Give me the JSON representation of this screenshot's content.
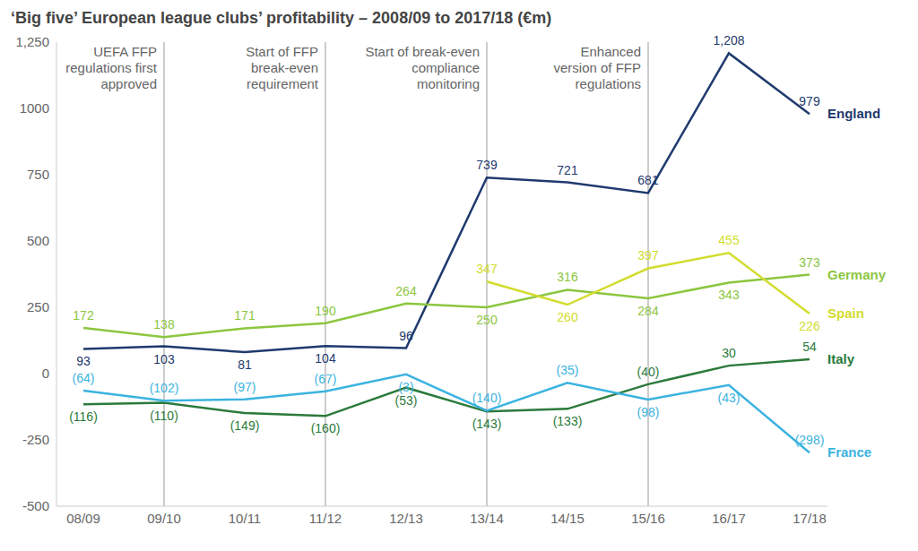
{
  "chart_data": {
    "type": "line",
    "title": "‘Big five’ European league clubs’ profitability – 2008/09 to 2017/18 (€m)",
    "categories": [
      "08/09",
      "09/10",
      "10/11",
      "11/12",
      "12/13",
      "13/14",
      "14/15",
      "15/16",
      "16/17",
      "17/18"
    ],
    "series": [
      {
        "name": "England",
        "color": "#1f3a6e",
        "values": [
          93,
          103,
          81,
          104,
          96,
          739,
          721,
          681,
          1208,
          979
        ],
        "value_labels": [
          "93",
          "103",
          "81",
          "104",
          "96",
          "739",
          "721",
          "681",
          "1,208",
          "979"
        ]
      },
      {
        "name": "Germany",
        "color": "#8cc63f",
        "values": [
          172,
          138,
          171,
          190,
          264,
          250,
          316,
          284,
          343,
          373
        ],
        "value_labels": [
          "172",
          "138",
          "171",
          "190",
          "264",
          "250",
          "316",
          "284",
          "343",
          "373"
        ]
      },
      {
        "name": "Spain",
        "color": "#d2dc2e",
        "values": [
          null,
          null,
          null,
          null,
          null,
          347,
          260,
          397,
          455,
          226
        ],
        "value_labels": [
          null,
          null,
          null,
          null,
          null,
          "347",
          "260",
          "397",
          "455",
          "226"
        ]
      },
      {
        "name": "Italy",
        "color": "#2b7a3b",
        "values": [
          -116,
          -110,
          -149,
          -160,
          -53,
          -143,
          -133,
          -40,
          30,
          54
        ],
        "value_labels": [
          "(116)",
          "(110)",
          "(149)",
          "(160)",
          "(53)",
          "(143)",
          "(133)",
          "(40)",
          "30",
          "54"
        ]
      },
      {
        "name": "France",
        "color": "#3bb3e0",
        "values": [
          -64,
          -102,
          -97,
          -67,
          -3,
          -140,
          -35,
          -98,
          -43,
          -298
        ],
        "value_labels": [
          "(64)",
          "(102)",
          "(97)",
          "(67)",
          "(3)",
          "(140)",
          "(35)",
          "(98)",
          "(43)",
          "(298)"
        ]
      }
    ],
    "ylim": [
      -500,
      1250
    ],
    "yticks": [
      -500,
      -250,
      0,
      250,
      500,
      750,
      1000,
      {
        "value": 1250,
        "label": "1,250"
      }
    ],
    "grid": false,
    "data_labels": true,
    "annotations": [
      {
        "x": "09/10",
        "text": [
          "UEFA FFP",
          "regulations first",
          "approved"
        ]
      },
      {
        "x": "11/12",
        "text": [
          "Start of FFP",
          "break-even",
          "requirement"
        ]
      },
      {
        "x": "13/14",
        "text": [
          "Start of break-even",
          "compliance",
          "monitoring"
        ]
      },
      {
        "x": "15/16",
        "text": [
          "Enhanced",
          "version of FFP",
          "regulations"
        ]
      }
    ]
  }
}
